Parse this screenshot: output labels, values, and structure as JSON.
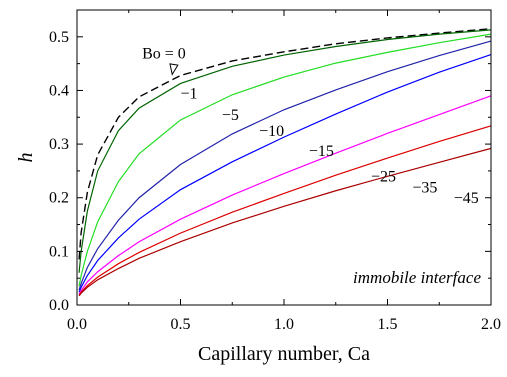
{
  "chart_data": {
    "type": "line",
    "title": "",
    "xlabel": "Capillary number, Ca",
    "ylabel": "h",
    "xlim": [
      0.0,
      2.0
    ],
    "ylim": [
      0.0,
      0.55
    ],
    "xticks": [
      "0.0",
      "0.5",
      "1.0",
      "1.5",
      "2.0"
    ],
    "yticks": [
      "0.0",
      "0.1",
      "0.2",
      "0.3",
      "0.4",
      "0.5"
    ],
    "grid": false,
    "legend": "none",
    "annotation": "immobile interface",
    "x": [
      0.01,
      0.02,
      0.05,
      0.1,
      0.2,
      0.3,
      0.5,
      0.75,
      1.0,
      1.25,
      1.5,
      1.75,
      2.0
    ],
    "series": [
      {
        "name": "Bo = 0",
        "color": "#000000",
        "dashed": true,
        "label_x": 0.42,
        "label_y": 0.46,
        "values": [
          0.085,
          0.135,
          0.21,
          0.28,
          0.35,
          0.388,
          0.428,
          0.455,
          0.472,
          0.487,
          0.498,
          0.507,
          0.515
        ]
      },
      {
        "name": "−1",
        "color": "#006400",
        "dashed": false,
        "label_x": 0.5,
        "label_y": 0.385,
        "values": [
          0.06,
          0.1,
          0.175,
          0.25,
          0.325,
          0.367,
          0.413,
          0.445,
          0.466,
          0.482,
          0.495,
          0.505,
          0.513
        ]
      },
      {
        "name": "−5",
        "color": "#22dd22",
        "dashed": false,
        "label_x": 0.7,
        "label_y": 0.345,
        "values": [
          0.035,
          0.055,
          0.1,
          0.155,
          0.23,
          0.282,
          0.345,
          0.392,
          0.425,
          0.451,
          0.471,
          0.489,
          0.505
        ]
      },
      {
        "name": "−10",
        "color": "#2222aa",
        "dashed": false,
        "label_x": 0.88,
        "label_y": 0.315,
        "values": [
          0.028,
          0.04,
          0.07,
          0.105,
          0.158,
          0.2,
          0.262,
          0.319,
          0.364,
          0.401,
          0.435,
          0.465,
          0.492
        ]
      },
      {
        "name": "−15",
        "color": "#0000ff",
        "dashed": false,
        "label_x": 1.12,
        "label_y": 0.278,
        "values": [
          0.024,
          0.033,
          0.055,
          0.083,
          0.125,
          0.16,
          0.215,
          0.267,
          0.313,
          0.356,
          0.397,
          0.434,
          0.467
        ]
      },
      {
        "name": "−25",
        "color": "#ff00ff",
        "dashed": false,
        "label_x": 1.42,
        "label_y": 0.23,
        "values": [
          0.02,
          0.027,
          0.043,
          0.062,
          0.092,
          0.118,
          0.16,
          0.205,
          0.245,
          0.283,
          0.32,
          0.355,
          0.39
        ]
      },
      {
        "name": "−35",
        "color": "#dd0000",
        "dashed": false,
        "label_x": 1.62,
        "label_y": 0.21,
        "values": [
          0.018,
          0.024,
          0.036,
          0.052,
          0.077,
          0.098,
          0.134,
          0.173,
          0.208,
          0.242,
          0.274,
          0.305,
          0.334
        ]
      },
      {
        "name": "−45",
        "color": "#aa0000",
        "dashed": false,
        "label_x": 1.82,
        "label_y": 0.19,
        "values": [
          0.017,
          0.022,
          0.033,
          0.047,
          0.068,
          0.087,
          0.118,
          0.153,
          0.184,
          0.213,
          0.24,
          0.266,
          0.292
        ]
      }
    ]
  }
}
